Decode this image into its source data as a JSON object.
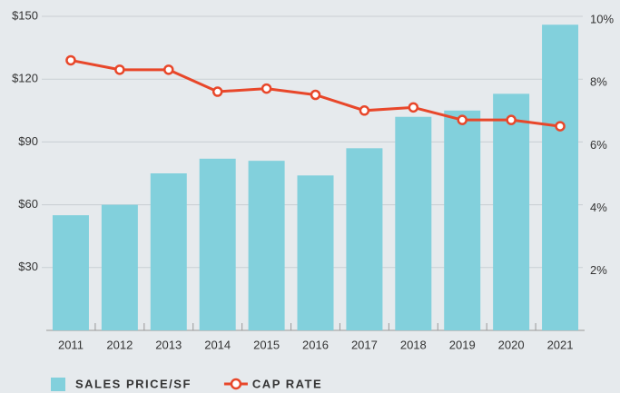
{
  "chart_data": {
    "type": "bar_line",
    "categories": [
      "2011",
      "2012",
      "2013",
      "2014",
      "2015",
      "2016",
      "2017",
      "2018",
      "2019",
      "2020",
      "2021"
    ],
    "series": [
      {
        "name": "SALES PRICE/SF",
        "type": "bar",
        "color": "#82d0dc",
        "axis": "y",
        "values": [
          55,
          60,
          75,
          82,
          81,
          74,
          87,
          102,
          105,
          113,
          146
        ]
      },
      {
        "name": "CAP RATE",
        "type": "line",
        "color": "#e8472a",
        "axis": "y2",
        "values": [
          8.6,
          8.3,
          8.3,
          7.6,
          7.7,
          7.5,
          7.0,
          7.1,
          6.7,
          6.7,
          6.5
        ]
      }
    ],
    "ylim": [
      0,
      150
    ],
    "yticks": [
      {
        "value": 30,
        "label": "$30"
      },
      {
        "value": 60,
        "label": "$60"
      },
      {
        "value": 90,
        "label": "$90"
      },
      {
        "value": 120,
        "label": "$120"
      },
      {
        "value": 150,
        "label": "$150"
      }
    ],
    "y2lim": [
      0,
      10
    ],
    "y2ticks": [
      {
        "value": 2,
        "label": "2%"
      },
      {
        "value": 4,
        "label": "4%"
      },
      {
        "value": 6,
        "label": "6%"
      },
      {
        "value": 8,
        "label": "8%"
      },
      {
        "value": 10,
        "label": "10%"
      }
    ],
    "grid": true,
    "legend": "bottom-left"
  }
}
